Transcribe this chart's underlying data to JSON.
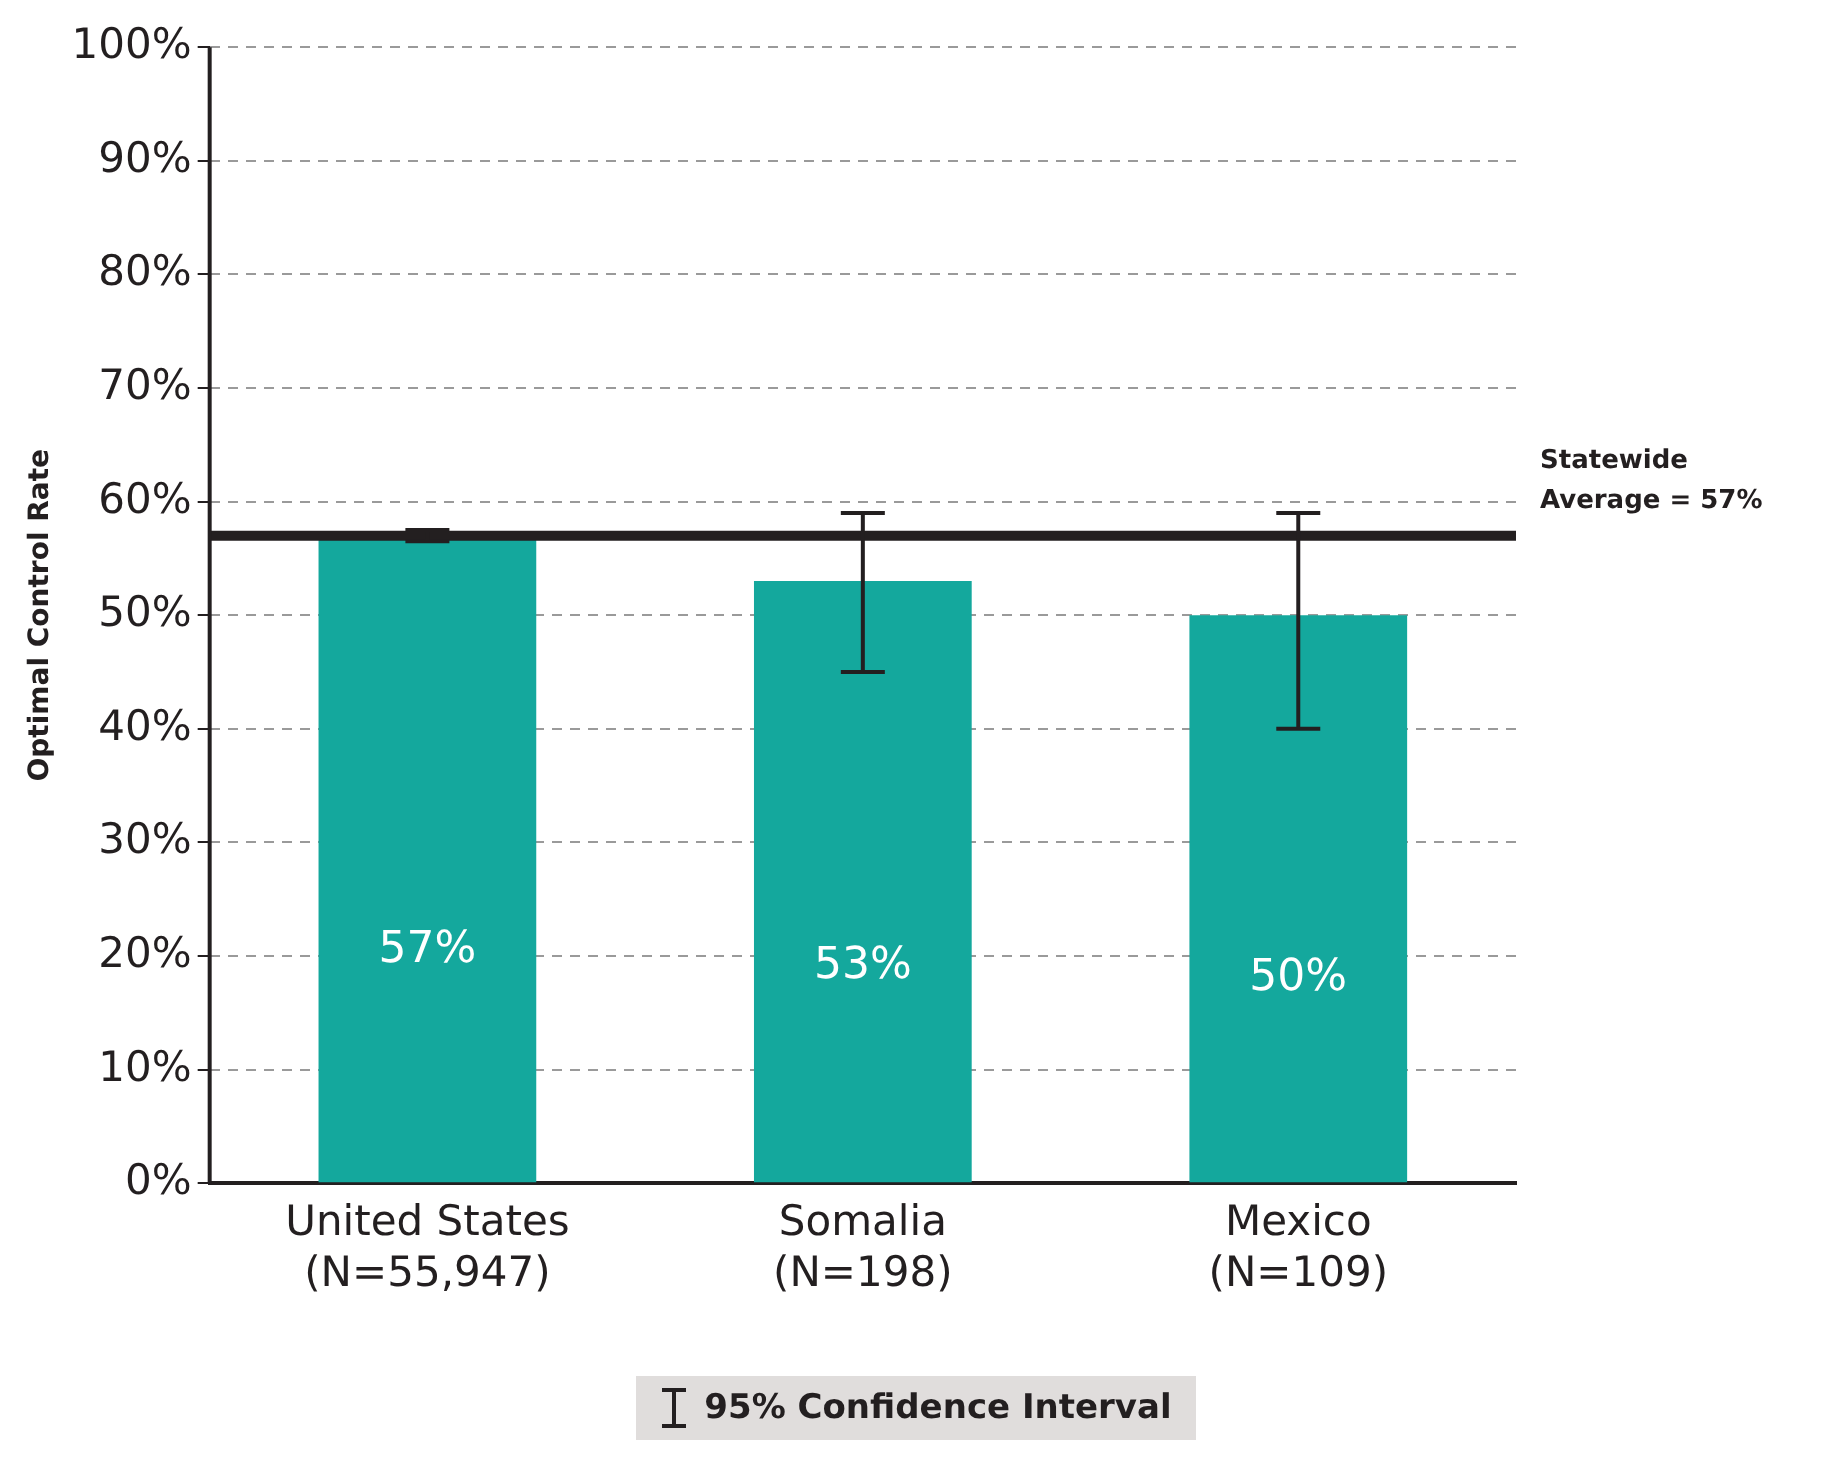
{
  "chart_data": {
    "type": "bar",
    "ylabel": "Optimal Control Rate",
    "categories": [
      "United States (N=55,947)",
      "Somalia (N=198)",
      "Mexico (N=109)"
    ],
    "values": [
      57,
      53,
      50
    ],
    "color": "#14a89d",
    "value_labels": [
      "57%",
      "53%",
      "50%"
    ],
    "errors": [
      [
        56.5,
        57.5
      ],
      [
        45,
        59
      ],
      [
        40,
        59
      ]
    ],
    "ylim": [
      0,
      100
    ],
    "yticks": [
      {
        "value": 0,
        "label": "0%"
      },
      {
        "value": 10,
        "label": "10%"
      },
      {
        "value": 20,
        "label": "20%"
      },
      {
        "value": 30,
        "label": "30%"
      },
      {
        "value": 40,
        "label": "40%"
      },
      {
        "value": 50,
        "label": "50%"
      },
      {
        "value": 60,
        "label": "60%"
      },
      {
        "value": 70,
        "label": "70%"
      },
      {
        "value": 80,
        "label": "80%"
      },
      {
        "value": 90,
        "label": "90%"
      },
      {
        "value": 100,
        "label": "100%"
      }
    ],
    "grid": "y",
    "ref_lines": [
      {
        "axis": "y",
        "value": 57,
        "label": "Statewide Average = 57%",
        "color": "#231f20"
      }
    ],
    "annotations": [
      "95% Confidence Interval"
    ]
  }
}
